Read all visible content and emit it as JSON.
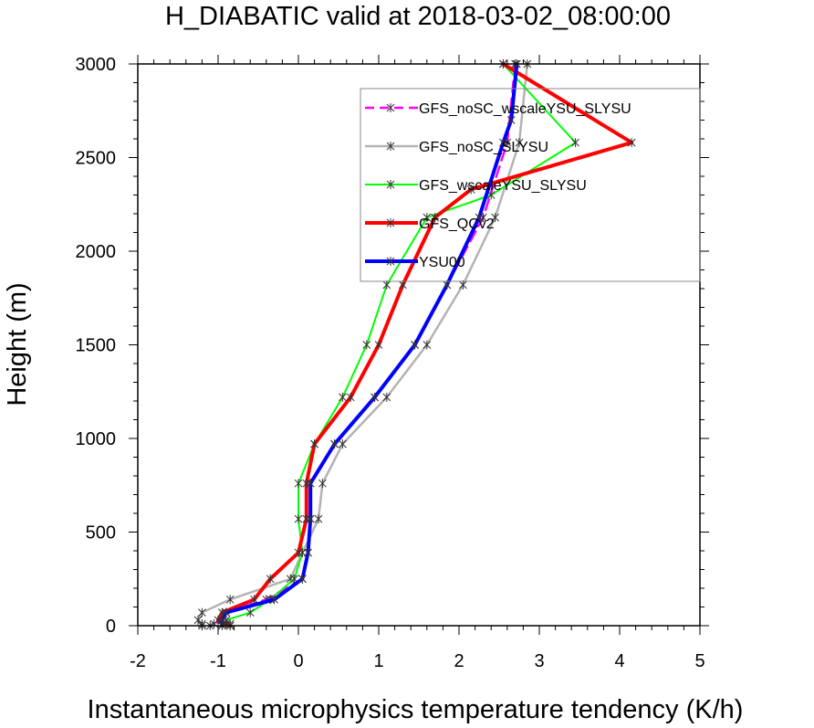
{
  "chart_data": {
    "type": "line",
    "title": "H_DIABATIC valid at 2018-03-02_08:00:00",
    "xlabel": "Instantaneous microphysics temperature tendency (K/h)",
    "ylabel": "Height (m)",
    "xlim": [
      -2,
      5
    ],
    "ylim": [
      0,
      3000
    ],
    "xticks": [
      -2,
      -1,
      0,
      1,
      2,
      3,
      4,
      5
    ],
    "yticks": [
      0,
      500,
      1000,
      1500,
      2000,
      2500,
      3000
    ],
    "xtick_labels": [
      "-2",
      "-1",
      "0",
      "1",
      "2",
      "3",
      "4",
      "5"
    ],
    "ytick_labels": [
      "0",
      "500",
      "1000",
      "1500",
      "2000",
      "2500",
      "3000"
    ],
    "legend_position": "top-right",
    "series": [
      {
        "name": "GFS_noSC_wscaleYSU_SLYSU",
        "color": "#ff00ff",
        "dashed": true,
        "width": 2.5,
        "points": [
          [
            2.7,
            3000
          ],
          [
            2.6,
            2580
          ],
          [
            2.3,
            2180
          ],
          [
            1.85,
            1820
          ],
          [
            1.45,
            1500
          ],
          [
            0.95,
            1220
          ],
          [
            0.45,
            970
          ],
          [
            0.15,
            760
          ],
          [
            0.15,
            570
          ],
          [
            0.12,
            390
          ],
          [
            0.05,
            250
          ],
          [
            -0.4,
            140
          ],
          [
            -0.9,
            70
          ],
          [
            -0.95,
            30
          ],
          [
            -1.05,
            10
          ],
          [
            -1.1,
            0
          ]
        ]
      },
      {
        "name": "GFS_noSC_SLYSU",
        "color": "#b3b3b3",
        "dashed": false,
        "width": 2.5,
        "points": [
          [
            2.85,
            3000
          ],
          [
            2.75,
            2580
          ],
          [
            2.45,
            2180
          ],
          [
            2.05,
            1820
          ],
          [
            1.6,
            1500
          ],
          [
            1.1,
            1220
          ],
          [
            0.55,
            970
          ],
          [
            0.3,
            760
          ],
          [
            0.25,
            570
          ],
          [
            0.05,
            390
          ],
          [
            -0.1,
            250
          ],
          [
            -0.85,
            140
          ],
          [
            -1.2,
            70
          ],
          [
            -1.25,
            30
          ],
          [
            -1.2,
            10
          ],
          [
            -1.2,
            0
          ]
        ]
      },
      {
        "name": "GFS_wscaleYSU_SLYSU",
        "color": "#00ff00",
        "dashed": false,
        "width": 2,
        "points": [
          [
            2.55,
            3000
          ],
          [
            3.45,
            2580
          ],
          [
            2.4,
            2300
          ],
          [
            1.6,
            2180
          ],
          [
            1.1,
            1820
          ],
          [
            0.85,
            1500
          ],
          [
            0.55,
            1220
          ],
          [
            0.2,
            970
          ],
          [
            0.0,
            760
          ],
          [
            0.0,
            570
          ],
          [
            0.05,
            390
          ],
          [
            -0.05,
            250
          ],
          [
            -0.35,
            140
          ],
          [
            -0.6,
            70
          ],
          [
            -0.9,
            30
          ],
          [
            -0.85,
            10
          ],
          [
            -0.85,
            0
          ]
        ]
      },
      {
        "name": "GFS_QCv2",
        "color": "#ff0000",
        "dashed": false,
        "width": 4,
        "points": [
          [
            2.55,
            3000
          ],
          [
            4.15,
            2580
          ],
          [
            2.15,
            2330
          ],
          [
            1.7,
            2180
          ],
          [
            1.3,
            1820
          ],
          [
            1.0,
            1500
          ],
          [
            0.65,
            1220
          ],
          [
            0.2,
            970
          ],
          [
            0.1,
            760
          ],
          [
            0.1,
            570
          ],
          [
            0.0,
            390
          ],
          [
            -0.35,
            250
          ],
          [
            -0.55,
            140
          ],
          [
            -0.95,
            70
          ],
          [
            -1.0,
            30
          ],
          [
            -0.9,
            10
          ],
          [
            -0.85,
            0
          ]
        ]
      },
      {
        "name": "YSU00",
        "color": "#0000ff",
        "dashed": false,
        "width": 4,
        "points": [
          [
            2.72,
            3000
          ],
          [
            2.65,
            2700
          ],
          [
            2.55,
            2580
          ],
          [
            2.25,
            2180
          ],
          [
            1.85,
            1820
          ],
          [
            1.45,
            1500
          ],
          [
            0.95,
            1220
          ],
          [
            0.45,
            970
          ],
          [
            0.15,
            760
          ],
          [
            0.15,
            570
          ],
          [
            0.12,
            390
          ],
          [
            0.05,
            250
          ],
          [
            -0.3,
            140
          ],
          [
            -0.9,
            70
          ],
          [
            -0.95,
            30
          ],
          [
            -0.95,
            10
          ],
          [
            -0.95,
            0
          ]
        ]
      }
    ]
  }
}
